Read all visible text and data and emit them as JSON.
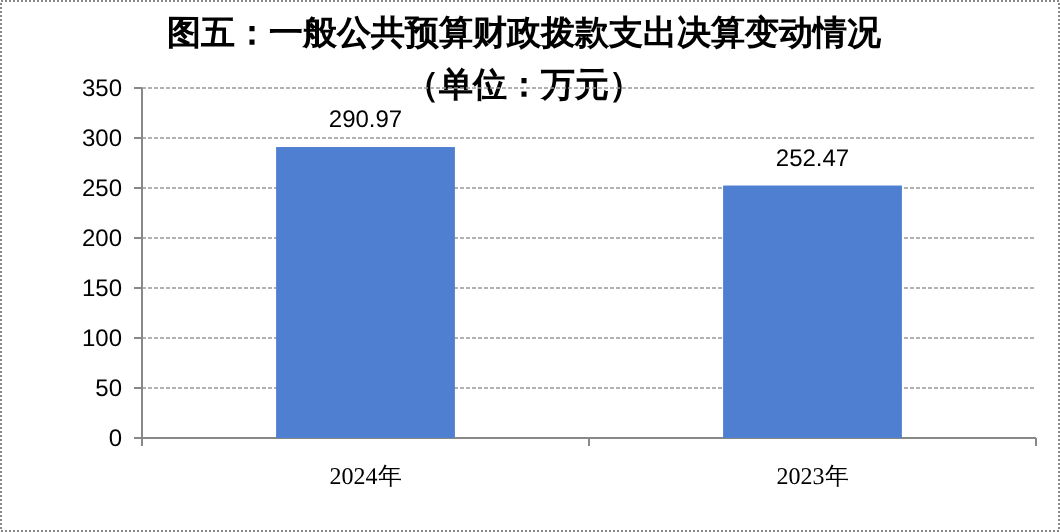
{
  "chart_data": {
    "type": "bar",
    "title": "图五：一般公共预算财政拨款支出决算变动情况",
    "subtitle": "（单位：万元）",
    "categories": [
      "2024年",
      "2023年"
    ],
    "values": [
      290.97,
      252.47
    ],
    "color": "#4f7fd0",
    "ylim": [
      0,
      350
    ],
    "yticks": [
      0,
      50,
      100,
      150,
      200,
      250,
      300,
      350
    ],
    "grid": "y",
    "data_labels": true
  }
}
